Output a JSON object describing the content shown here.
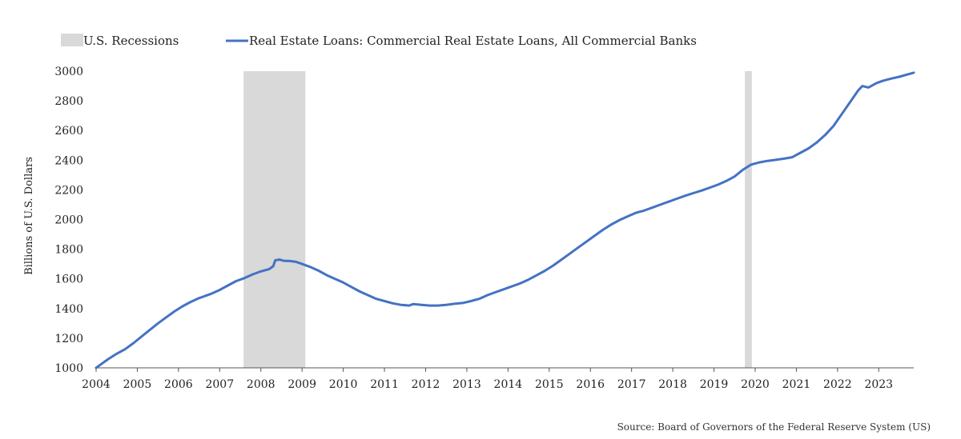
{
  "chart_data": {
    "type": "line",
    "title": "",
    "xlabel": "",
    "ylabel": "Billions of U.S. Dollars",
    "ylim": [
      1000,
      3000
    ],
    "yticks": [
      1000,
      1200,
      1400,
      1600,
      1800,
      2000,
      2200,
      2400,
      2600,
      2800,
      3000
    ],
    "xlim": [
      2004.0,
      2023.85
    ],
    "xticks": [
      "2004",
      "2005",
      "2006",
      "2007",
      "2008",
      "2009",
      "2010",
      "2011",
      "2012",
      "2013",
      "2014",
      "2015",
      "2016",
      "2017",
      "2018",
      "2019",
      "2020",
      "2021",
      "2022",
      "2023"
    ],
    "grid": false,
    "legend_position": "top-left",
    "legend": {
      "recession_label": "U.S. Recessions",
      "series_label": "Real Estate Loans: Commercial Real Estate Loans, All Commercial Banks"
    },
    "colors": {
      "series": "#4472c4",
      "recession": "#d9d9d9",
      "axis": "#555555"
    },
    "recessions": [
      {
        "start": 2007.58,
        "end": 2009.08
      },
      {
        "start": 2019.75,
        "end": 2019.92
      }
    ],
    "series": [
      {
        "name": "Real Estate Loans: Commercial Real Estate Loans, All Commercial Banks",
        "x": [
          2004.0,
          2004.1,
          2004.3,
          2004.5,
          2004.7,
          2004.9,
          2005.1,
          2005.3,
          2005.5,
          2005.7,
          2005.9,
          2006.1,
          2006.3,
          2006.5,
          2006.6,
          2006.8,
          2007.0,
          2007.2,
          2007.4,
          2007.6,
          2007.8,
          2008.0,
          2008.2,
          2008.3,
          2008.35,
          2008.45,
          2008.55,
          2008.7,
          2008.85,
          2009.0,
          2009.2,
          2009.4,
          2009.6,
          2009.8,
          2010.0,
          2010.2,
          2010.4,
          2010.6,
          2010.8,
          2011.0,
          2011.2,
          2011.4,
          2011.6,
          2011.7,
          2011.9,
          2012.1,
          2012.3,
          2012.5,
          2012.7,
          2012.9,
          2013.1,
          2013.3,
          2013.5,
          2013.7,
          2013.9,
          2014.1,
          2014.3,
          2014.5,
          2014.7,
          2014.9,
          2015.1,
          2015.3,
          2015.5,
          2015.7,
          2015.9,
          2016.1,
          2016.3,
          2016.5,
          2016.7,
          2016.9,
          2017.1,
          2017.3,
          2017.5,
          2017.7,
          2017.9,
          2018.1,
          2018.3,
          2018.5,
          2018.7,
          2018.9,
          2019.1,
          2019.3,
          2019.5,
          2019.7,
          2019.9,
          2020.1,
          2020.3,
          2020.5,
          2020.7,
          2020.9,
          2021.1,
          2021.3,
          2021.5,
          2021.7,
          2021.9,
          2022.1,
          2022.3,
          2022.5,
          2022.6,
          2022.75,
          2022.95,
          2023.1,
          2023.3,
          2023.5,
          2023.7,
          2023.85
        ],
        "y": [
          1000,
          1020,
          1060,
          1095,
          1125,
          1165,
          1210,
          1255,
          1300,
          1340,
          1380,
          1415,
          1445,
          1470,
          1480,
          1500,
          1525,
          1555,
          1585,
          1605,
          1630,
          1650,
          1665,
          1685,
          1725,
          1730,
          1722,
          1720,
          1715,
          1700,
          1680,
          1655,
          1625,
          1600,
          1575,
          1545,
          1515,
          1490,
          1465,
          1450,
          1435,
          1425,
          1420,
          1430,
          1425,
          1420,
          1420,
          1425,
          1432,
          1437,
          1450,
          1465,
          1490,
          1510,
          1530,
          1550,
          1570,
          1595,
          1625,
          1655,
          1690,
          1730,
          1770,
          1810,
          1850,
          1890,
          1930,
          1965,
          1995,
          2020,
          2045,
          2060,
          2080,
          2100,
          2120,
          2140,
          2160,
          2178,
          2195,
          2215,
          2235,
          2260,
          2290,
          2335,
          2370,
          2385,
          2395,
          2402,
          2410,
          2420,
          2450,
          2480,
          2520,
          2570,
          2630,
          2710,
          2790,
          2870,
          2900,
          2890,
          2920,
          2935,
          2950,
          2962,
          2978,
          2990
        ]
      }
    ]
  },
  "source": "Source: Board of Governors of the Federal Reserve System (US)"
}
